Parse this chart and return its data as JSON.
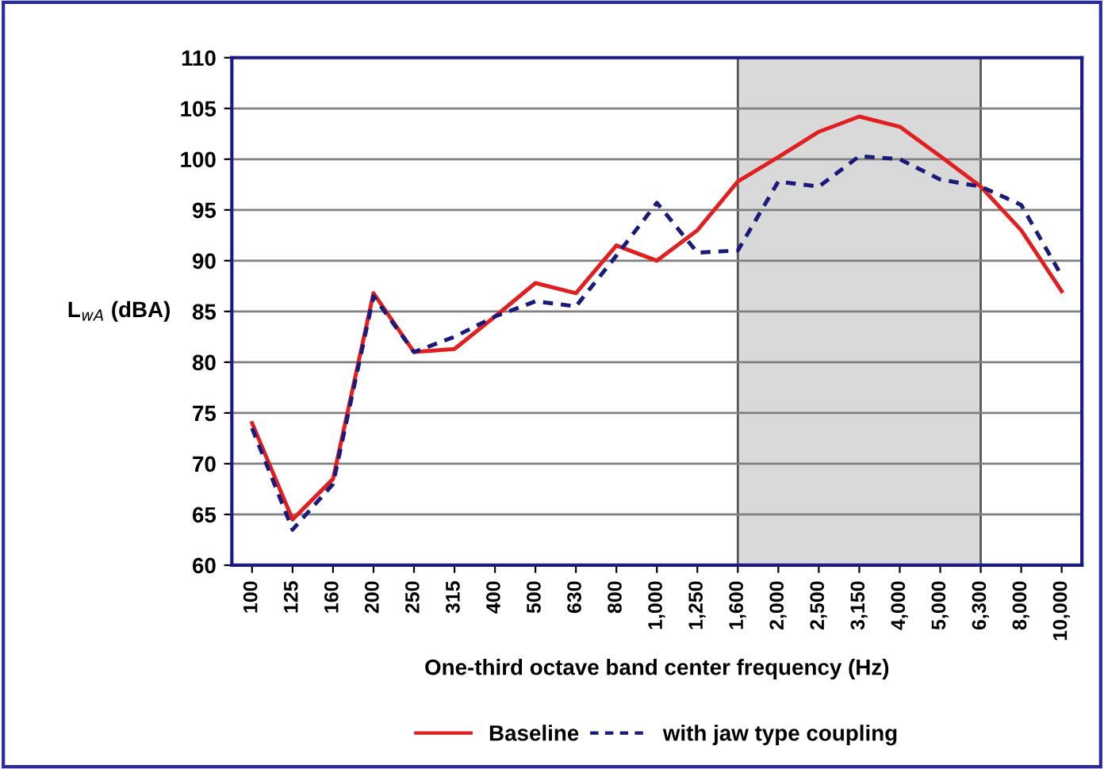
{
  "chart_data": {
    "type": "line",
    "xlabel": "One-third octave band center frequency (Hz)",
    "ylabel": "L$_{wA}$ (dBA)",
    "categories": [
      "100",
      "125",
      "160",
      "200",
      "250",
      "315",
      "400",
      "500",
      "630",
      "800",
      "1,000",
      "1,250",
      "1,600",
      "2,000",
      "2,500",
      "3,150",
      "4,000",
      "5,000",
      "6,300",
      "8,000",
      "10,000"
    ],
    "series": [
      {
        "name": "Baseline",
        "color": "#e02020",
        "line_style": "solid",
        "values": [
          74,
          64.5,
          68.5,
          86.8,
          81,
          81.3,
          84.5,
          87.8,
          86.8,
          91.5,
          90,
          93,
          97.8,
          100.2,
          102.7,
          104.2,
          103.2,
          100.3,
          97.3,
          93,
          87
        ]
      },
      {
        "name": "with jaw type coupling",
        "color": "#1a1a7a",
        "line_style": "dashed",
        "values": [
          73.5,
          63.5,
          68,
          86.5,
          81,
          82.5,
          84.5,
          86,
          85.5,
          90.5,
          95.7,
          90.8,
          91,
          97.8,
          97.3,
          100.3,
          100,
          98,
          97.3,
          95.5,
          88.5
        ]
      }
    ],
    "bands": [
      {
        "axis": "x",
        "from": "1,600",
        "to": "6,300",
        "color": "#d9d9d9"
      }
    ],
    "ylim": [
      60,
      110
    ],
    "yticks": [
      60,
      65,
      70,
      75,
      80,
      85,
      90,
      95,
      100,
      105,
      110
    ],
    "grid": "y",
    "legend": "bottom",
    "marker": "none"
  }
}
